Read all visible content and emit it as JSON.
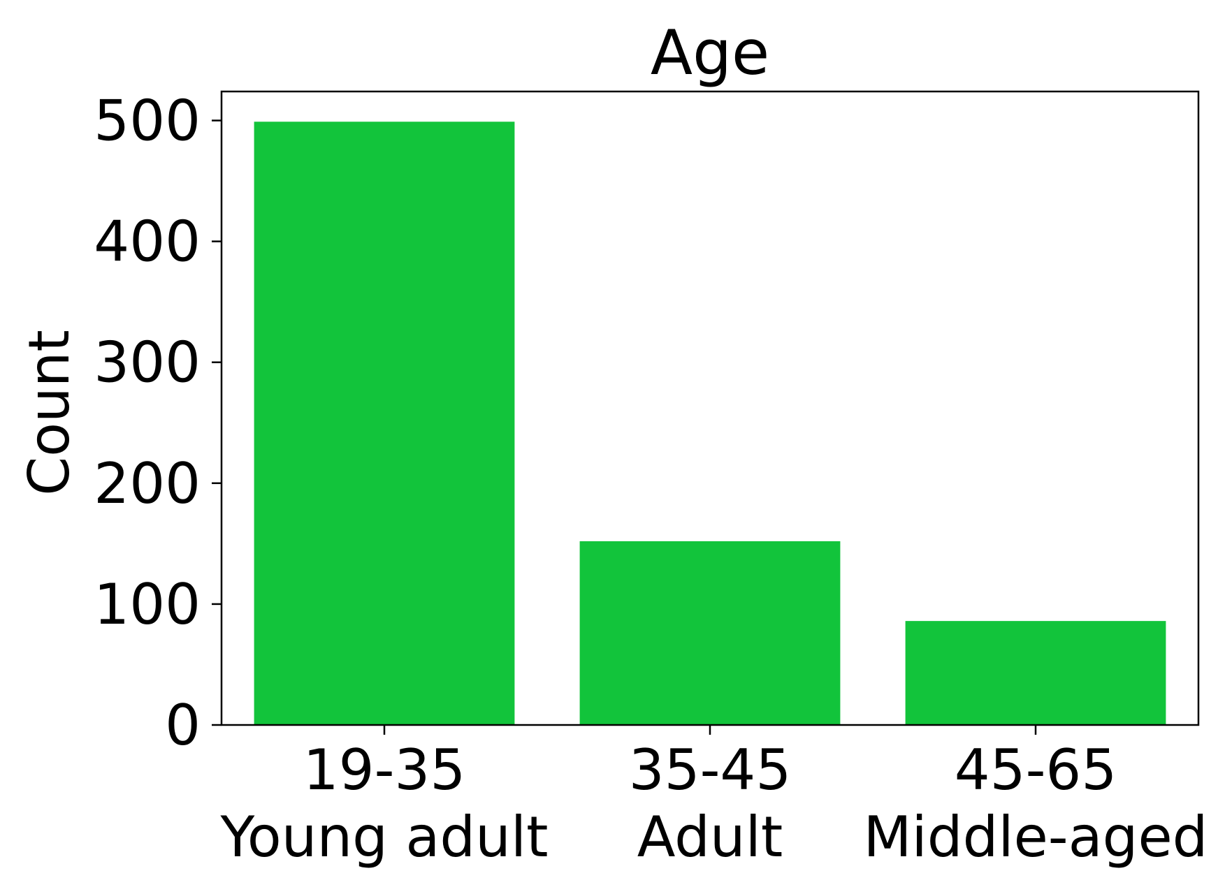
{
  "chart_data": {
    "type": "bar",
    "title": "Age",
    "ylabel": "Count",
    "xlabel": "",
    "categories": [
      {
        "range": "19-35",
        "label": "Young adult"
      },
      {
        "range": "35-45",
        "label": "Adult"
      },
      {
        "range": "45-65",
        "label": "Middle-aged"
      }
    ],
    "values": [
      499,
      152,
      86
    ],
    "ylim": [
      0,
      524
    ],
    "yticks": [
      "0",
      "100",
      "200",
      "300",
      "400",
      "500"
    ],
    "bar_color": "#12c43b",
    "grid": false
  }
}
